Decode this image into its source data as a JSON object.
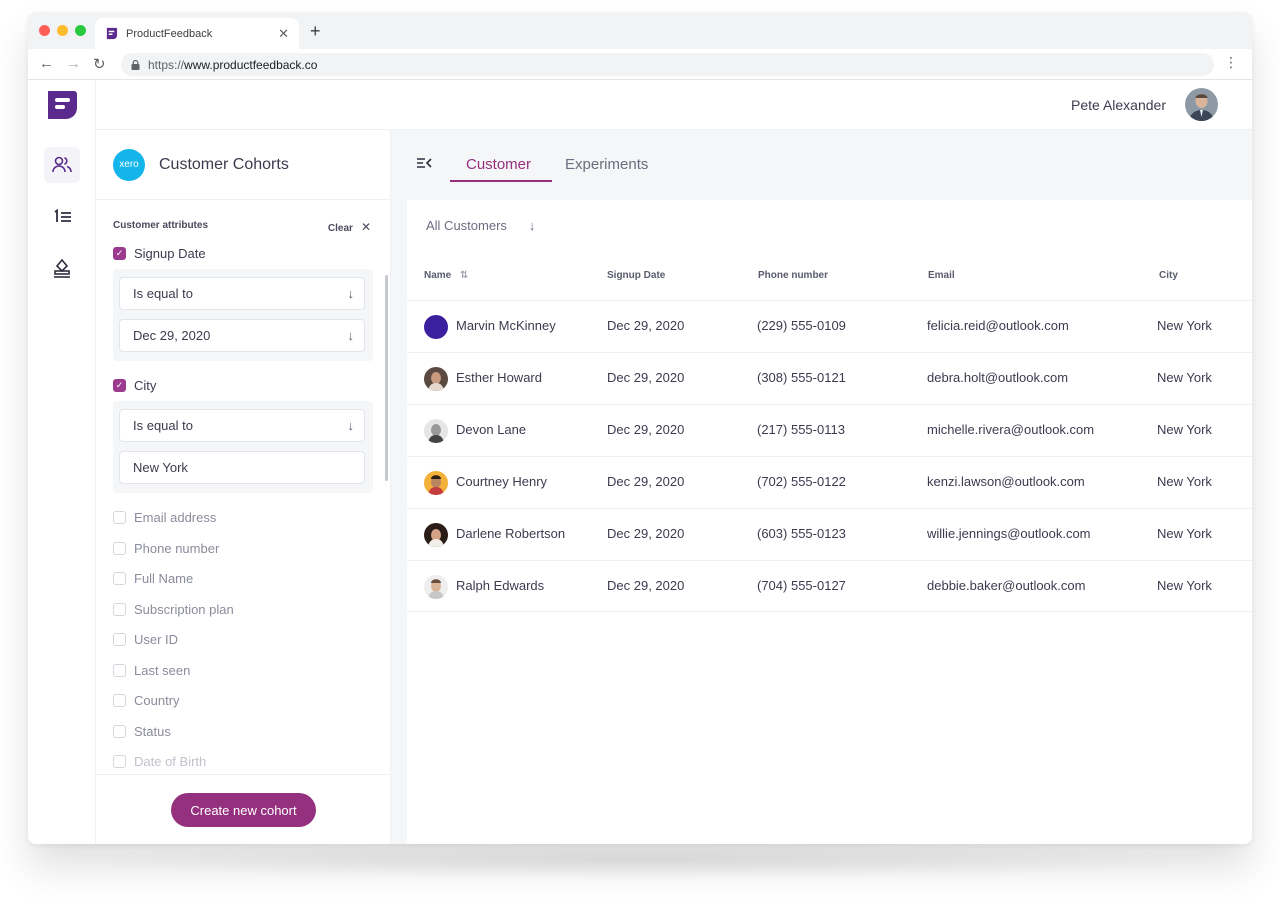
{
  "browser": {
    "tab_title": "ProductFeedback",
    "new_tab": "+",
    "url_protocol": "https://",
    "url_host": "www.productfeedback.co"
  },
  "header": {
    "user_name": "Pete Alexander"
  },
  "sidebar": {
    "title": "Customer Cohorts",
    "brand_badge": "xero",
    "attributes_label": "Customer attributes",
    "clear_label": "Clear",
    "signup": {
      "label": "Signup Date",
      "operator": "Is equal to",
      "value": "Dec 29, 2020"
    },
    "city": {
      "label": "City",
      "operator": "Is equal to",
      "value": "New York"
    },
    "unchecked": [
      "Email address",
      "Phone number",
      "Full Name",
      "Subscription plan",
      "User ID",
      "Last seen",
      "Country",
      "Status",
      "Date of Birth"
    ],
    "create_button": "Create new cohort"
  },
  "main": {
    "tabs": [
      "Customer",
      "Experiments"
    ],
    "filter_label": "All Customers",
    "columns": [
      "Name",
      "Signup Date",
      "Phone number",
      "Email",
      "City"
    ],
    "rows": [
      {
        "name": "Marvin McKinney",
        "signup": "Dec 29, 2020",
        "phone": "(229) 555-0109",
        "email": "felicia.reid@outlook.com",
        "city": "New York"
      },
      {
        "name": "Esther Howard",
        "signup": "Dec 29, 2020",
        "phone": "(308) 555-0121",
        "email": "debra.holt@outlook.com",
        "city": "New York"
      },
      {
        "name": "Devon Lane",
        "signup": "Dec 29, 2020",
        "phone": "(217) 555-0113",
        "email": "michelle.rivera@outlook.com",
        "city": "New York"
      },
      {
        "name": "Courtney Henry",
        "signup": "Dec 29, 2020",
        "phone": "(702) 555-0122",
        "email": "kenzi.lawson@outlook.com",
        "city": "New York"
      },
      {
        "name": "Darlene Robertson",
        "signup": "Dec 29, 2020",
        "phone": "(603) 555-0123",
        "email": "willie.jennings@outlook.com",
        "city": "New York"
      },
      {
        "name": "Ralph Edwards",
        "signup": "Dec 29, 2020",
        "phone": "(704) 555-0127",
        "email": "debbie.baker@outlook.com",
        "city": "New York"
      }
    ]
  },
  "colors": {
    "accent": "#95307f",
    "xero": "#13b5ea",
    "logo": "#5a2a8c"
  }
}
